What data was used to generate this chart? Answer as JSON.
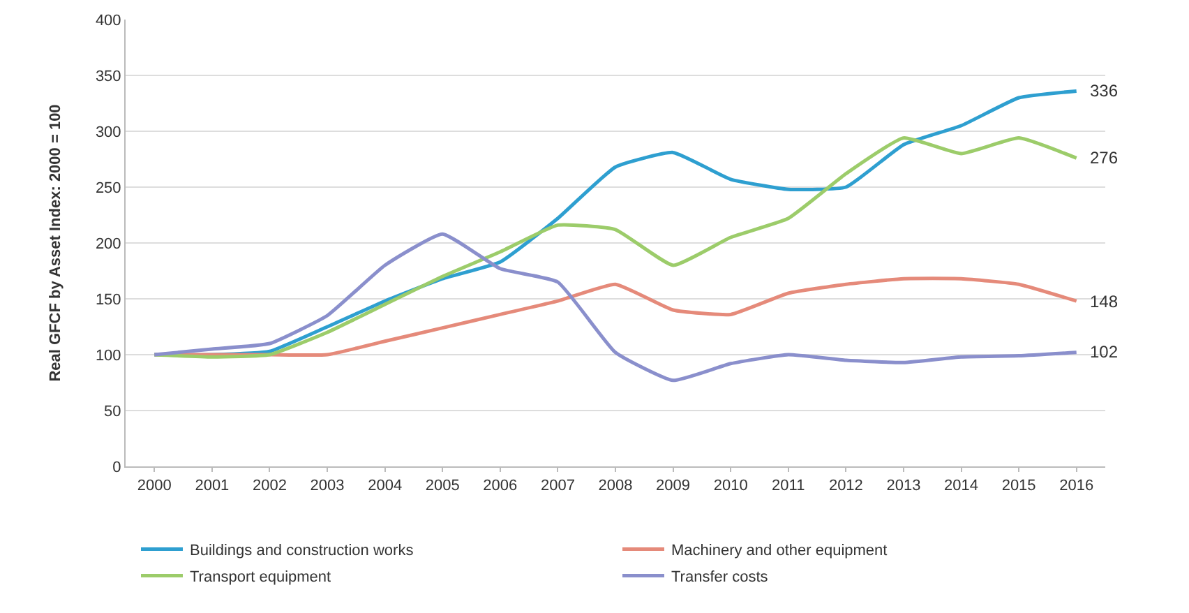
{
  "chart_data": {
    "type": "line",
    "ylabel": "Real GFCF by Asset Index: 2000 = 100",
    "categories": [
      "2000",
      "2001",
      "2002",
      "2003",
      "2004",
      "2005",
      "2006",
      "2007",
      "2008",
      "2009",
      "2010",
      "2011",
      "2012",
      "2013",
      "2014",
      "2015",
      "2016"
    ],
    "series": [
      {
        "name": "Buildings and construction works",
        "color": "#2e9fd0",
        "values": [
          100,
          100,
          103,
          125,
          148,
          168,
          183,
          222,
          268,
          281,
          257,
          248,
          250,
          288,
          305,
          330,
          336
        ],
        "value_labels": [
          null,
          null,
          null,
          null,
          null,
          null,
          null,
          null,
          null,
          null,
          null,
          null,
          null,
          null,
          null,
          null,
          "336"
        ]
      },
      {
        "name": "Machinery and other equipment",
        "color": "#e58a7a",
        "values": [
          100,
          100,
          100,
          100,
          112,
          124,
          136,
          148,
          163,
          140,
          136,
          155,
          163,
          168,
          168,
          163,
          148
        ],
        "value_labels": [
          null,
          null,
          null,
          null,
          null,
          null,
          null,
          null,
          null,
          null,
          null,
          null,
          null,
          null,
          null,
          null,
          "148"
        ]
      },
      {
        "name": "Transport equipment",
        "color": "#9ccc6a",
        "values": [
          100,
          98,
          100,
          120,
          145,
          170,
          192,
          216,
          212,
          180,
          205,
          222,
          262,
          294,
          280,
          294,
          276
        ],
        "value_labels": [
          null,
          null,
          null,
          null,
          null,
          null,
          null,
          null,
          null,
          null,
          null,
          null,
          null,
          null,
          null,
          null,
          "276"
        ]
      },
      {
        "name": "Transfer costs",
        "color": "#8a8fcc",
        "values": [
          100,
          105,
          110,
          135,
          180,
          208,
          177,
          165,
          102,
          77,
          92,
          100,
          95,
          93,
          98,
          99,
          102
        ],
        "value_labels": [
          null,
          null,
          null,
          null,
          null,
          null,
          null,
          null,
          null,
          null,
          null,
          null,
          null,
          null,
          null,
          null,
          "102"
        ]
      }
    ],
    "ylim": [
      0,
      400
    ],
    "yticks": [
      0,
      50,
      100,
      150,
      200,
      250,
      300,
      350,
      400
    ],
    "grid": "y",
    "legend": "bottom",
    "marker": "none",
    "line_style": "solid"
  }
}
